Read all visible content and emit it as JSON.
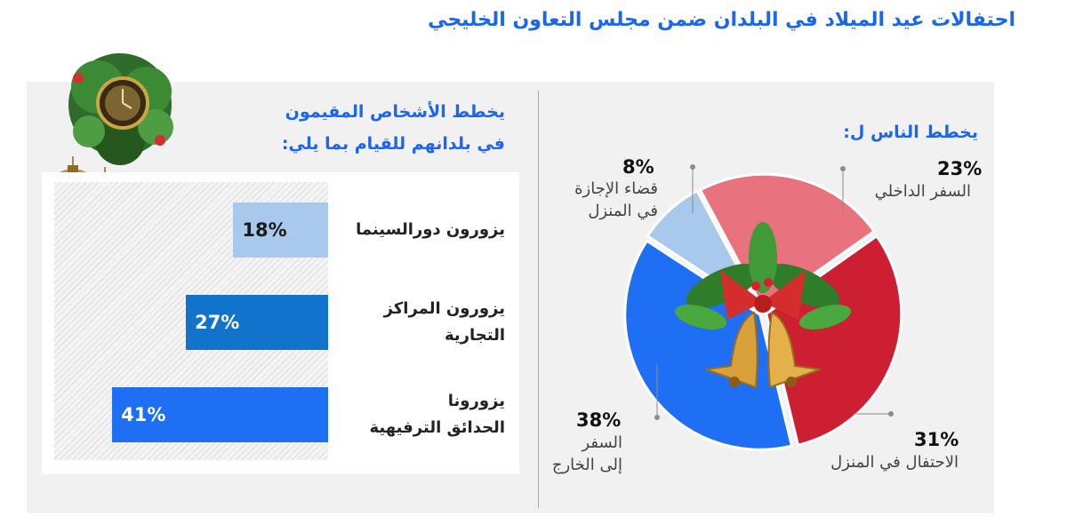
{
  "title": "احتفالات عيد الميلاد في البلدان ضمن مجلس التعاون الخليجي",
  "bar_section": {
    "heading_line1": "يخطط الأشخاص المقيمون",
    "heading_line2": "في بلدانهم للقيام بما يلي:"
  },
  "pie_section": {
    "heading": "يخطط الناس ل:"
  },
  "colors": {
    "title_blue": "#1a66f0",
    "bar_light_blue": "#a8c8ec",
    "bar_mid_blue": "#1173cc",
    "bar_bright_blue": "#1f6ff4",
    "pie_pink": "#e8737f",
    "pie_red": "#cc1f32",
    "pie_blue": "#1f6ff4",
    "pie_light_blue": "#a8c8ec"
  },
  "chart_data": [
    {
      "type": "bar",
      "orientation": "horizontal",
      "categories": [
        "يزورون دورالسينما",
        [
          "يزورون المراكز",
          "التجارية"
        ],
        [
          "يزورونا",
          "الحدائق الترفيهية"
        ]
      ],
      "category_lines": [
        [
          "يزورون دورالسينما"
        ],
        [
          "يزورون المراكز",
          "التجارية"
        ],
        [
          "يزورونا",
          "الحدائق الترفيهية"
        ]
      ],
      "values": [
        18,
        27,
        41
      ],
      "value_labels": [
        "18%",
        "27%",
        "41%"
      ],
      "xlim": [
        0,
        52
      ]
    },
    {
      "type": "pie",
      "style": "donut-with-center-image",
      "slices": [
        {
          "value": 23,
          "label_pct": "23%",
          "label_lines": [
            "السفر الداخلي"
          ],
          "color": "#e8737f"
        },
        {
          "value": 31,
          "label_pct": "31%",
          "label_lines": [
            "الاحتفال في المنزل"
          ],
          "color": "#cc1f32"
        },
        {
          "value": 38,
          "label_pct": "38%",
          "label_lines": [
            "السفر",
            "إلى الخارج"
          ],
          "color": "#1f6ff4"
        },
        {
          "value": 8,
          "label_pct": "8%",
          "label_lines": [
            "قضاء الإجازة",
            "في المنزل"
          ],
          "color": "#a8c8ec"
        }
      ]
    }
  ]
}
